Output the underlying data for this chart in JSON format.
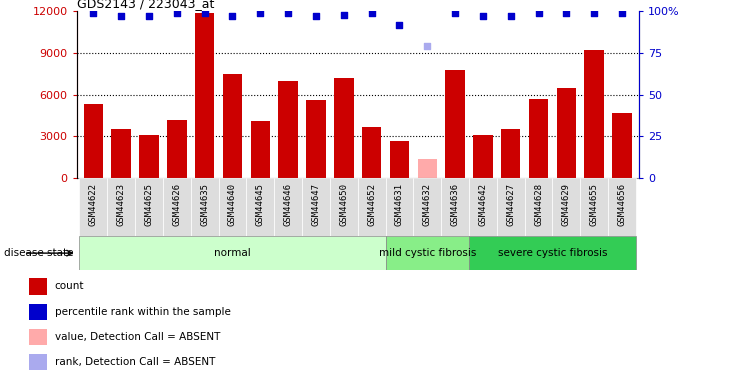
{
  "title": "GDS2143 / 223043_at",
  "samples": [
    "GSM44622",
    "GSM44623",
    "GSM44625",
    "GSM44626",
    "GSM44635",
    "GSM44640",
    "GSM44645",
    "GSM44646",
    "GSM44647",
    "GSM44650",
    "GSM44652",
    "GSM44631",
    "GSM44632",
    "GSM44636",
    "GSM44642",
    "GSM44627",
    "GSM44628",
    "GSM44629",
    "GSM44655",
    "GSM44656"
  ],
  "counts": [
    5300,
    3500,
    3100,
    4200,
    11900,
    7500,
    4100,
    7000,
    5600,
    7200,
    3700,
    2700,
    1400,
    7800,
    3100,
    3500,
    5700,
    6500,
    9200,
    4700
  ],
  "absent_count_idx": [
    12
  ],
  "ranks": [
    99,
    97,
    97,
    99,
    99,
    97,
    99,
    99,
    97,
    98,
    99,
    92,
    79,
    99,
    97,
    97,
    99,
    99,
    99,
    99
  ],
  "absent_rank_idx": [
    12
  ],
  "group_list": [
    {
      "name": "normal",
      "start": 0,
      "end": 10,
      "color": "#ccffcc"
    },
    {
      "name": "mild cystic fibrosis",
      "start": 11,
      "end": 13,
      "color": "#88ee88"
    },
    {
      "name": "severe cystic fibrosis",
      "start": 14,
      "end": 19,
      "color": "#33cc55"
    }
  ],
  "bar_color_present": "#cc0000",
  "bar_color_absent": "#ffaaaa",
  "rank_color_present": "#0000cc",
  "rank_color_absent": "#aaaaee",
  "ylim_left": [
    0,
    12000
  ],
  "ylim_right": [
    0,
    100
  ],
  "yticks_left": [
    0,
    3000,
    6000,
    9000,
    12000
  ],
  "yticks_right": [
    0,
    25,
    50,
    75,
    100
  ],
  "grid_values": [
    3000,
    6000,
    9000
  ],
  "legend_items": [
    {
      "label": "count",
      "color": "#cc0000"
    },
    {
      "label": "percentile rank within the sample",
      "color": "#0000cc"
    },
    {
      "label": "value, Detection Call = ABSENT",
      "color": "#ffaaaa"
    },
    {
      "label": "rank, Detection Call = ABSENT",
      "color": "#aaaaee"
    }
  ],
  "sample_bg_color": "#dddddd",
  "white_bg": "#ffffff"
}
